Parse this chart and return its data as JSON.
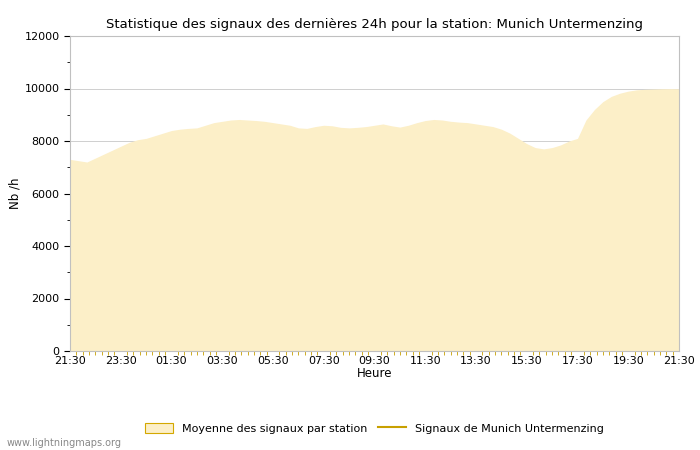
{
  "title": "Statistique des signaux des dernières 24h pour la station: Munich Untermenzing",
  "xlabel": "Heure",
  "ylabel": "Nb /h",
  "ylim": [
    0,
    12000
  ],
  "yticks_major": [
    0,
    2000,
    4000,
    6000,
    8000,
    10000,
    12000
  ],
  "fill_color": "#fcefc8",
  "fill_edge_color": "#d4a800",
  "line_color": "#c8a000",
  "background_color": "#ffffff",
  "plot_bg_color": "#ffffff",
  "watermark": "www.lightningmaps.org",
  "legend_fill_label": "Moyenne des signaux par station",
  "legend_line_label": "Signaux de Munich Untermenzing",
  "x_tick_labels": [
    "21:30",
    "23:30",
    "01:30",
    "03:30",
    "05:30",
    "07:30",
    "09:30",
    "11:30",
    "13:30",
    "15:30",
    "17:30",
    "19:30",
    "21:30"
  ],
  "x_tick_positions": [
    0,
    2,
    4,
    6,
    8,
    10,
    12,
    14,
    16,
    18,
    20,
    22,
    24
  ],
  "time_hours": [
    0.0,
    0.333,
    0.667,
    1.0,
    1.333,
    1.667,
    2.0,
    2.333,
    2.667,
    3.0,
    3.333,
    3.667,
    4.0,
    4.333,
    4.667,
    5.0,
    5.333,
    5.667,
    6.0,
    6.333,
    6.667,
    7.0,
    7.333,
    7.667,
    8.0,
    8.333,
    8.667,
    9.0,
    9.333,
    9.667,
    10.0,
    10.333,
    10.667,
    11.0,
    11.333,
    11.667,
    12.0,
    12.333,
    12.667,
    13.0,
    13.333,
    13.667,
    14.0,
    14.333,
    14.667,
    15.0,
    15.333,
    15.667,
    16.0,
    16.333,
    16.667,
    17.0,
    17.333,
    17.667,
    18.0,
    18.333,
    18.667,
    19.0,
    19.333,
    19.667,
    20.0,
    20.333,
    20.667,
    21.0,
    21.333,
    21.667,
    22.0,
    22.333,
    22.667,
    23.0,
    23.333,
    23.667,
    24.0
  ],
  "avg_values": [
    7300,
    7250,
    7200,
    7350,
    7500,
    7650,
    7800,
    7950,
    8050,
    8100,
    8200,
    8300,
    8400,
    8450,
    8480,
    8500,
    8600,
    8700,
    8750,
    8800,
    8820,
    8800,
    8780,
    8750,
    8700,
    8650,
    8600,
    8500,
    8480,
    8550,
    8600,
    8580,
    8520,
    8500,
    8520,
    8550,
    8600,
    8650,
    8580,
    8530,
    8600,
    8700,
    8780,
    8820,
    8800,
    8750,
    8720,
    8700,
    8650,
    8600,
    8550,
    8450,
    8300,
    8100,
    7900,
    7750,
    7700,
    7750,
    7850,
    8000,
    8100,
    8800,
    9200,
    9500,
    9700,
    9820,
    9900,
    9950,
    9970,
    9980,
    9990,
    9995,
    9990
  ]
}
